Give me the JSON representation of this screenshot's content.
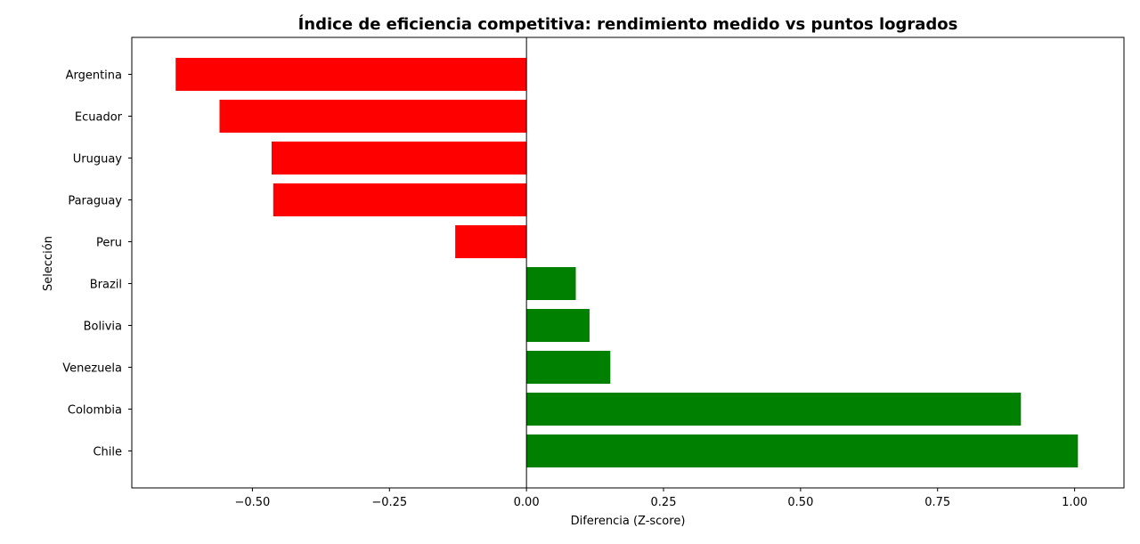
{
  "chart_data": {
    "type": "bar",
    "orientation": "horizontal",
    "title": "Índice de eficiencia competitiva: rendimiento medido vs puntos logrados",
    "xlabel": "Diferencia (Z-score)",
    "ylabel": "Selección",
    "categories": [
      "Argentina",
      "Ecuador",
      "Uruguay",
      "Paraguay",
      "Peru",
      "Brazil",
      "Bolivia",
      "Venezuela",
      "Colombia",
      "Chile"
    ],
    "values": [
      -0.64,
      -0.56,
      -0.465,
      -0.462,
      -0.13,
      0.09,
      0.115,
      0.153,
      0.902,
      1.006
    ],
    "xlim": [
      -0.72,
      1.09
    ],
    "xticks": [
      -0.5,
      -0.25,
      0.0,
      0.25,
      0.5,
      0.75,
      1.0
    ],
    "xtick_labels": [
      "−0.50",
      "−0.25",
      "0.00",
      "0.25",
      "0.50",
      "0.75",
      "1.00"
    ],
    "grid": false,
    "legend": "none",
    "colors": {
      "negative": "#ff0000",
      "positive": "#008000",
      "zero_line": "#000000",
      "frame": "#000000"
    }
  }
}
